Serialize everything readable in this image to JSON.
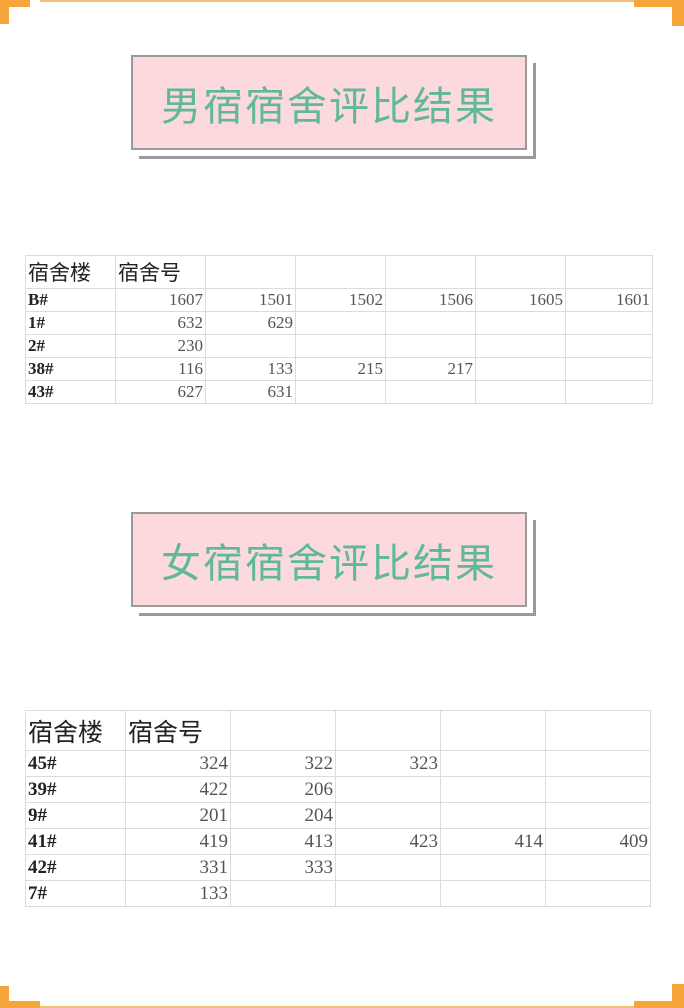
{
  "accent": "#f5a53a",
  "male": {
    "title": "男宿宿舍评比结果",
    "headers": [
      "宿舍楼",
      "宿舍号"
    ],
    "rows": [
      {
        "building": "B#",
        "rooms": [
          "1607",
          "1501",
          "1502",
          "1506",
          "1605",
          "1601"
        ]
      },
      {
        "building": "1#",
        "rooms": [
          "632",
          "629"
        ]
      },
      {
        "building": "2#",
        "rooms": [
          "230"
        ]
      },
      {
        "building": "38#",
        "rooms": [
          "116",
          "133",
          "215",
          "217"
        ]
      },
      {
        "building": "43#",
        "rooms": [
          "627",
          "631"
        ]
      }
    ]
  },
  "female": {
    "title": "女宿宿舍评比结果",
    "headers": [
      "宿舍楼",
      "宿舍号"
    ],
    "rows": [
      {
        "building": "45#",
        "rooms": [
          "324",
          "322",
          "323"
        ]
      },
      {
        "building": "39#",
        "rooms": [
          "422",
          "206"
        ]
      },
      {
        "building": "9#",
        "rooms": [
          "201",
          "204"
        ]
      },
      {
        "building": "41#",
        "rooms": [
          "419",
          "413",
          "423",
          "414",
          "409"
        ]
      },
      {
        "building": "42#",
        "rooms": [
          "331",
          "333"
        ]
      },
      {
        "building": "7#",
        "rooms": [
          "133"
        ]
      }
    ]
  }
}
